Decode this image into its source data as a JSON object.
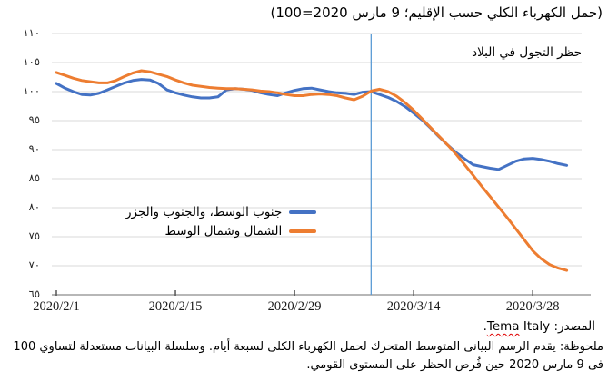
{
  "title": "(حمل الكهرباء الكلي حسب الإقليم؛ 9 مارس 2020=100)",
  "chart_data": {
    "type": "line",
    "title": "(حمل الكهرباء الكلي حسب الإقليم؛ 9 مارس 2020=100)",
    "x_start_date": "2020/2/1",
    "x_end_date": "2020/4/1",
    "x_tick_labels": [
      "2020/2/1",
      "2020/2/15",
      "2020/2/29",
      "2020/3/14",
      "2020/3/28"
    ],
    "x_tick_day_indices": [
      0,
      14,
      28,
      42,
      56
    ],
    "y_tick_labels": [
      "١١٠",
      "١٠٥",
      "١٠٠",
      "٩٥",
      "٩٠",
      "٨٥",
      "٨٠",
      "٧٥",
      "٧٠",
      "٦٥"
    ],
    "y_tick_values": [
      110,
      105,
      100,
      95,
      90,
      85,
      80,
      75,
      70,
      65
    ],
    "ylim": [
      65,
      110
    ],
    "grid": true,
    "legend_position": "inside-left-middle",
    "annotation": {
      "text": "حظر التجول في البلاد",
      "date": "2020/3/9",
      "day_index": 37,
      "line_color": "#5B9BD5"
    },
    "series": [
      {
        "name": "جنوب الوسط، والجنوب والجزر",
        "color": "#4472C4",
        "values": [
          101.4,
          100.6,
          100.0,
          99.5,
          99.4,
          99.7,
          100.3,
          100.9,
          101.5,
          101.9,
          102.1,
          102.0,
          101.4,
          100.3,
          99.8,
          99.4,
          99.1,
          98.9,
          98.9,
          99.1,
          100.3,
          100.5,
          100.4,
          100.2,
          99.8,
          99.5,
          99.3,
          99.8,
          100.2,
          100.5,
          100.6,
          100.3,
          100.0,
          99.8,
          99.7,
          99.5,
          99.9,
          100.0,
          99.5,
          99.0,
          98.3,
          97.4,
          96.3,
          95.1,
          93.7,
          92.2,
          90.8,
          89.5,
          88.4,
          87.4,
          87.1,
          86.8,
          86.6,
          87.3,
          88.0,
          88.4,
          88.5,
          88.3,
          88.0,
          87.6,
          87.3
        ]
      },
      {
        "name": "الشمال وشمال الوسط",
        "color": "#ED7D31",
        "values": [
          103.3,
          102.8,
          102.3,
          101.9,
          101.7,
          101.5,
          101.5,
          101.9,
          102.6,
          103.2,
          103.6,
          103.4,
          103.0,
          102.6,
          102.0,
          101.5,
          101.1,
          100.9,
          100.7,
          100.6,
          100.5,
          100.5,
          100.4,
          100.3,
          100.1,
          100.0,
          99.8,
          99.5,
          99.3,
          99.3,
          99.5,
          99.6,
          99.5,
          99.3,
          98.9,
          98.6,
          99.2,
          100.1,
          100.4,
          100.0,
          99.2,
          98.1,
          96.8,
          95.3,
          93.8,
          92.3,
          90.8,
          89.2,
          87.4,
          85.6,
          83.7,
          81.9,
          80.1,
          78.3,
          76.4,
          74.5,
          72.6,
          71.2,
          70.2,
          69.6,
          69.2
        ]
      }
    ],
    "grid_color": "#D9D9D9",
    "axis_color": "#8C8C8C"
  },
  "source": {
    "prefix": "المصدر: ",
    "misspelled": "Tema",
    "rest": " Italy",
    "suffix": "."
  },
  "note": "ملحوظة: يقدم الرسم البيانى المتوسط المتحرك لحمل الكهرباء الكلى لسبعة أيام. وسلسلة البيانات مستعدلة لتساوي 100 فى 9 مارس 2020 حين فُرض الحظر على المستوى القومي."
}
